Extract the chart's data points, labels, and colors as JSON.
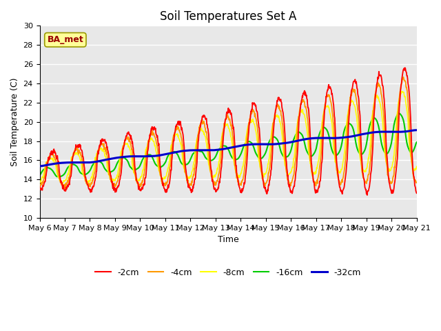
{
  "title": "Soil Temperatures Set A",
  "xlabel": "Time",
  "ylabel": "Soil Temperature (C)",
  "ylim": [
    10,
    30
  ],
  "xlim": [
    0,
    15
  ],
  "x_tick_labels": [
    "May 6",
    "May 7",
    "May 8",
    "May 9",
    "May 10",
    "May 11",
    "May 12",
    "May 13",
    "May 14",
    "May 15",
    "May 16",
    "May 17",
    "May 18",
    "May 19",
    "May 20",
    "May 21"
  ],
  "annotation_text": "BA_met",
  "annotation_box_facecolor": "#ffff99",
  "annotation_box_edgecolor": "#999900",
  "annotation_text_color": "#990000",
  "bg_color": "#e8e8e8",
  "series_colors": [
    "#ff0000",
    "#ff9900",
    "#ffff00",
    "#00cc00",
    "#0000cc"
  ],
  "series_labels": [
    "-2cm",
    "-4cm",
    "-8cm",
    "-16cm",
    "-32cm"
  ],
  "grid_color": "#ffffff",
  "title_fontsize": 12,
  "axis_label_fontsize": 9,
  "tick_fontsize": 8,
  "legend_fontsize": 9
}
